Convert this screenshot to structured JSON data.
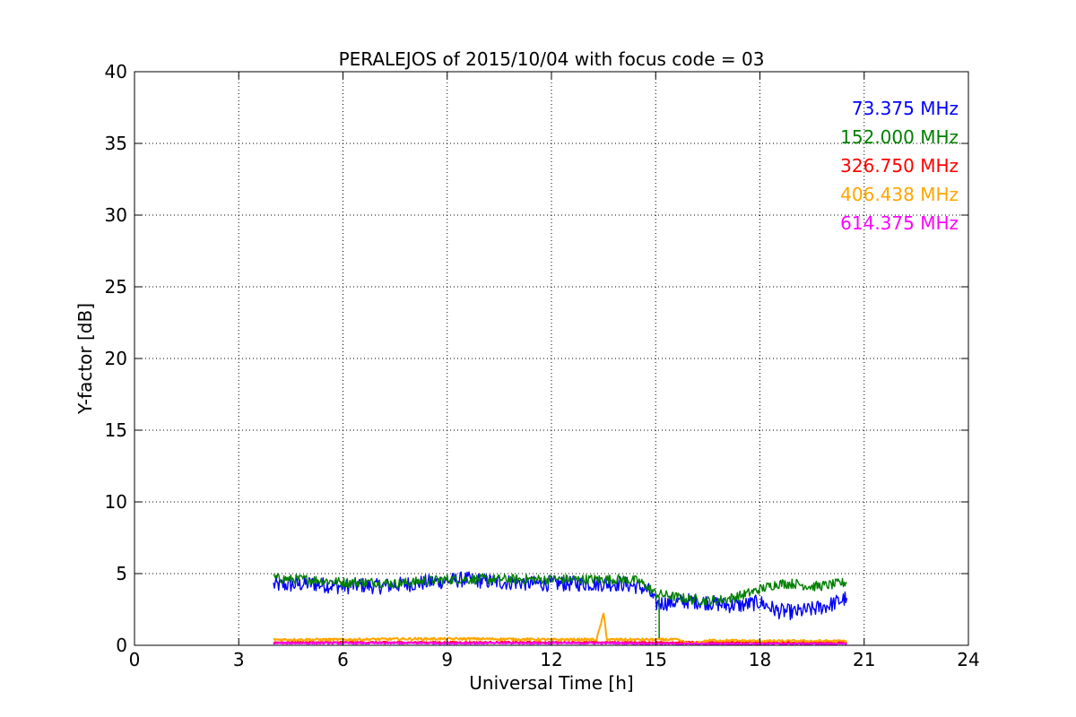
{
  "chart_data": {
    "type": "line",
    "title": "PERALEJOS of 2015/10/04 with focus code = 03",
    "xlabel": "Universal Time [h]",
    "ylabel": "Y-factor [dB]",
    "xlim": [
      0,
      24
    ],
    "ylim": [
      0,
      40
    ],
    "xticks": [
      "0",
      "3",
      "6",
      "9",
      "12",
      "15",
      "18",
      "21",
      "24"
    ],
    "yticks": [
      "0",
      "5",
      "10",
      "15",
      "20",
      "25",
      "30",
      "35",
      "40"
    ],
    "grid": true,
    "legend_placement": "top-right",
    "series": [
      {
        "name": "73.375 MHz",
        "color": "#0000ff",
        "x": [
          4.0,
          4.5,
          5.0,
          5.5,
          6.0,
          6.5,
          7.0,
          7.5,
          8.0,
          8.5,
          9.0,
          9.5,
          10.0,
          10.5,
          11.0,
          11.5,
          12.0,
          12.5,
          13.0,
          13.5,
          14.0,
          14.5,
          14.8,
          15.0,
          15.5,
          16.0,
          16.5,
          17.0,
          17.5,
          18.0,
          18.5,
          19.0,
          19.5,
          20.0,
          20.5
        ],
        "y": [
          4.2,
          4.2,
          4.3,
          4.2,
          4.1,
          4.2,
          4.1,
          4.2,
          4.3,
          4.4,
          4.5,
          4.6,
          4.5,
          4.4,
          4.4,
          4.3,
          4.3,
          4.3,
          4.3,
          4.3,
          4.3,
          4.1,
          3.8,
          2.9,
          3.0,
          3.1,
          3.0,
          2.8,
          2.8,
          3.0,
          2.4,
          2.3,
          2.5,
          2.8,
          3.3
        ]
      },
      {
        "name": "152.000 MHz",
        "color": "#008000",
        "x": [
          4.0,
          4.5,
          5.0,
          5.5,
          6.0,
          6.5,
          7.0,
          7.5,
          8.0,
          8.5,
          9.0,
          9.5,
          10.0,
          10.5,
          11.0,
          11.5,
          12.0,
          12.5,
          13.0,
          13.5,
          14.0,
          14.5,
          14.8,
          15.0,
          15.5,
          16.0,
          16.5,
          17.0,
          17.5,
          18.0,
          18.5,
          19.0,
          19.5,
          20.0,
          20.5
        ],
        "y": [
          4.7,
          4.6,
          4.6,
          4.5,
          4.4,
          4.4,
          4.4,
          4.3,
          4.4,
          4.5,
          4.6,
          4.6,
          4.6,
          4.6,
          4.6,
          4.6,
          4.6,
          4.6,
          4.6,
          4.6,
          4.6,
          4.5,
          4.0,
          3.6,
          3.4,
          3.2,
          3.1,
          3.2,
          3.5,
          3.9,
          4.3,
          4.3,
          4.1,
          4.2,
          4.4
        ]
      },
      {
        "name": "326.750 MHz",
        "color": "#ff0000",
        "x": [
          4.0,
          6.0,
          8.0,
          10.0,
          12.0,
          14.0,
          16.0,
          18.0,
          20.5
        ],
        "y": [
          0.2,
          0.2,
          0.2,
          0.2,
          0.2,
          0.2,
          0.2,
          0.2,
          0.2
        ]
      },
      {
        "name": "406.438 MHz",
        "color": "#ffa500",
        "x": [
          4.0,
          6.0,
          8.0,
          10.0,
          12.0,
          13.3,
          13.5,
          13.6,
          14.0,
          15.0,
          15.6,
          16.0,
          16.6,
          18.0,
          20.5
        ],
        "y": [
          0.4,
          0.4,
          0.45,
          0.45,
          0.4,
          0.4,
          2.2,
          0.4,
          0.4,
          0.4,
          0.4,
          0.1,
          0.35,
          0.3,
          0.3
        ]
      },
      {
        "name": "614.375 MHz",
        "color": "#ff00ff",
        "x": [
          4.0,
          6.0,
          8.0,
          10.0,
          12.0,
          14.0,
          16.0,
          18.0,
          20.5
        ],
        "y": [
          0.15,
          0.15,
          0.15,
          0.15,
          0.15,
          0.15,
          0.1,
          0.1,
          0.1
        ]
      }
    ]
  }
}
